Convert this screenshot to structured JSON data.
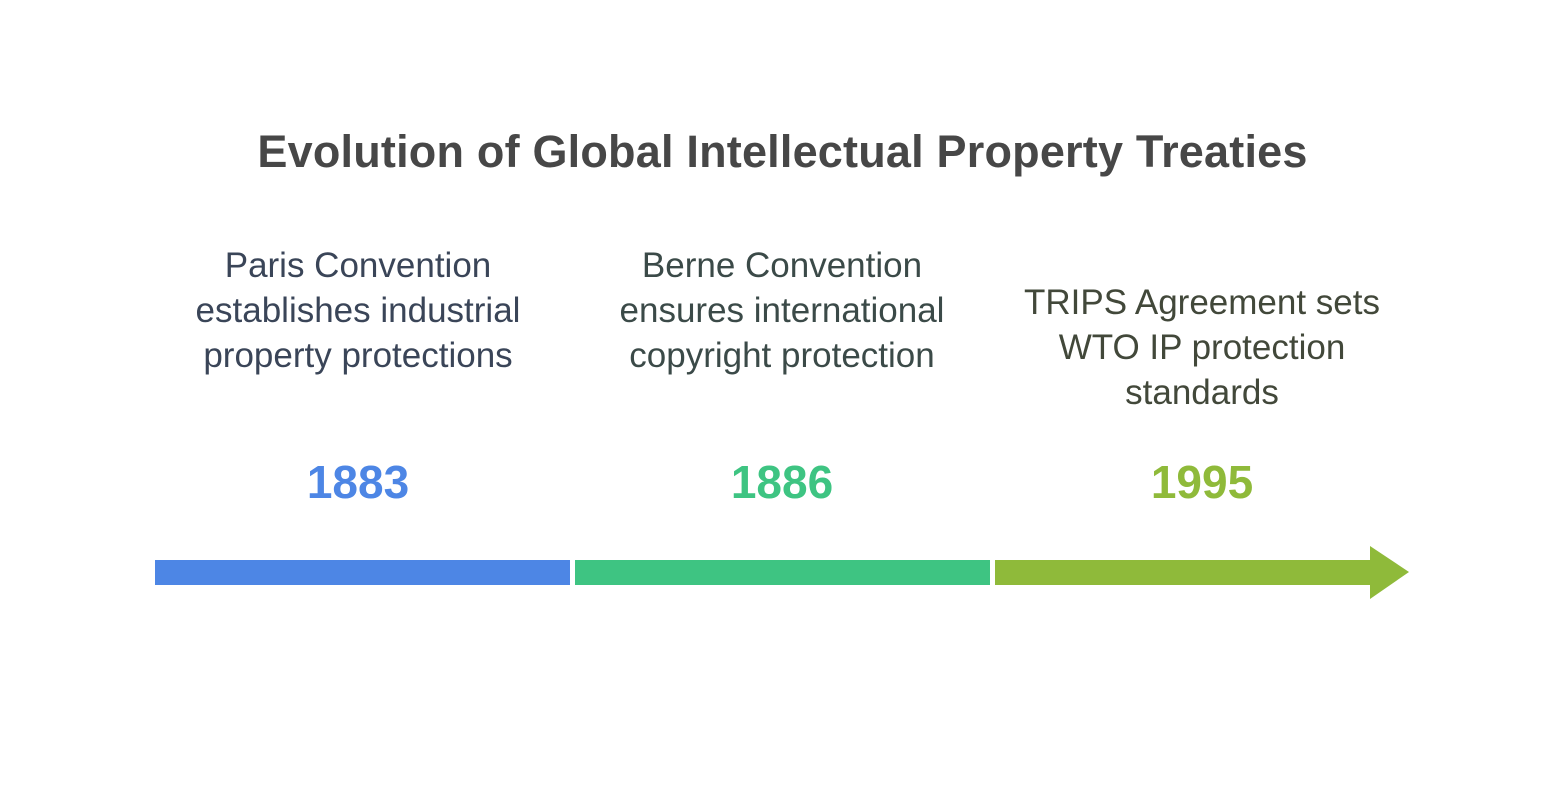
{
  "title": "Evolution of Global Intellectual Property Treaties",
  "events": [
    {
      "description": "Paris Convention establishes industrial property protections",
      "year": "1883",
      "color": "#4d86e5",
      "text_color": "#3a4558"
    },
    {
      "description": "Berne Convention ensures international copyright protection",
      "year": "1886",
      "color": "#3ec482",
      "text_color": "#3b4a48"
    },
    {
      "description": "TRIPS Agreement sets WTO IP protection standards",
      "year": "1995",
      "color": "#8fba3a",
      "text_color": "#42483a"
    }
  ]
}
